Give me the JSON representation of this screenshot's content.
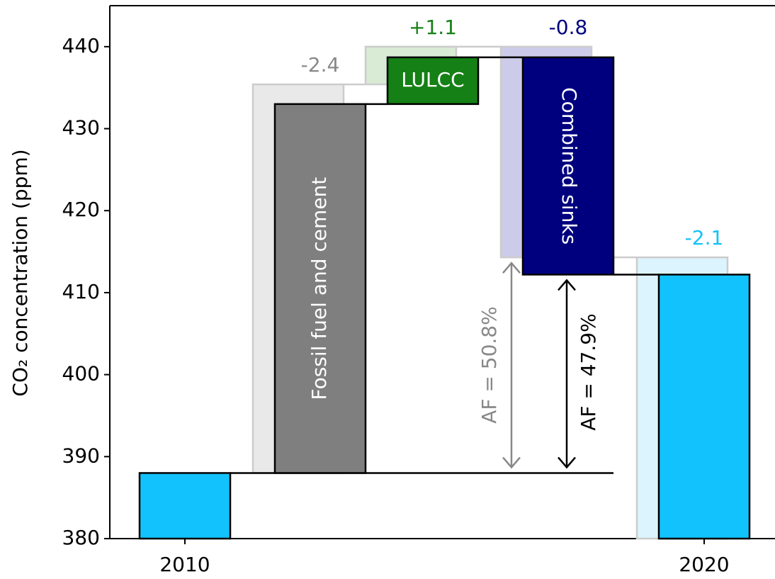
{
  "chart_data": {
    "type": "waterfall",
    "ylabel": "CO₂ concentration (ppm)",
    "categories": [
      "2010",
      "Fossil fuel and cement",
      "LULCC",
      "Combined sinks",
      "2020"
    ],
    "values": [
      388,
      45,
      5.7,
      -26.5,
      412.2
    ],
    "colors": [
      "#12c2fc",
      "#7f7f7f",
      "#158015",
      "#00007f",
      "#12c2fc"
    ],
    "reference_values": [
      null,
      47.4,
      4.6,
      -25.7,
      414.3
    ],
    "reference_colors": [
      null,
      "#e9e9e9",
      "#d9ead5",
      "#ccccea",
      "#dcf4fd"
    ],
    "difference_labels": [
      null,
      "-2.4",
      "+1.1",
      "-0.8",
      "-2.1"
    ],
    "difference_colors": [
      null,
      "#888888",
      "#158015",
      "#00007f",
      "#12c2fc"
    ],
    "annotations": [
      {
        "text": "AF = 50.8%",
        "color": "#888888"
      },
      {
        "text": "AF = 47.9%",
        "color": "#000000"
      }
    ],
    "ylim": [
      380,
      445
    ],
    "yticks": [
      380,
      390,
      400,
      410,
      420,
      430,
      440
    ]
  }
}
